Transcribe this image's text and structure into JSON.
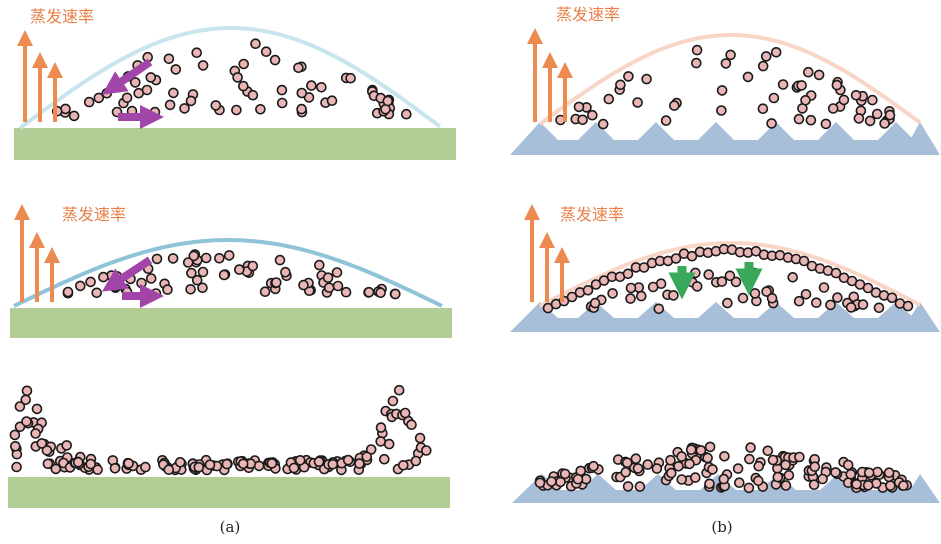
{
  "labels": [
    "蒸发速率",
    "蒸发速率",
    "蒸发速率",
    "蒸发速率"
  ],
  "captions": [
    "(a)",
    "(b)"
  ]
}
